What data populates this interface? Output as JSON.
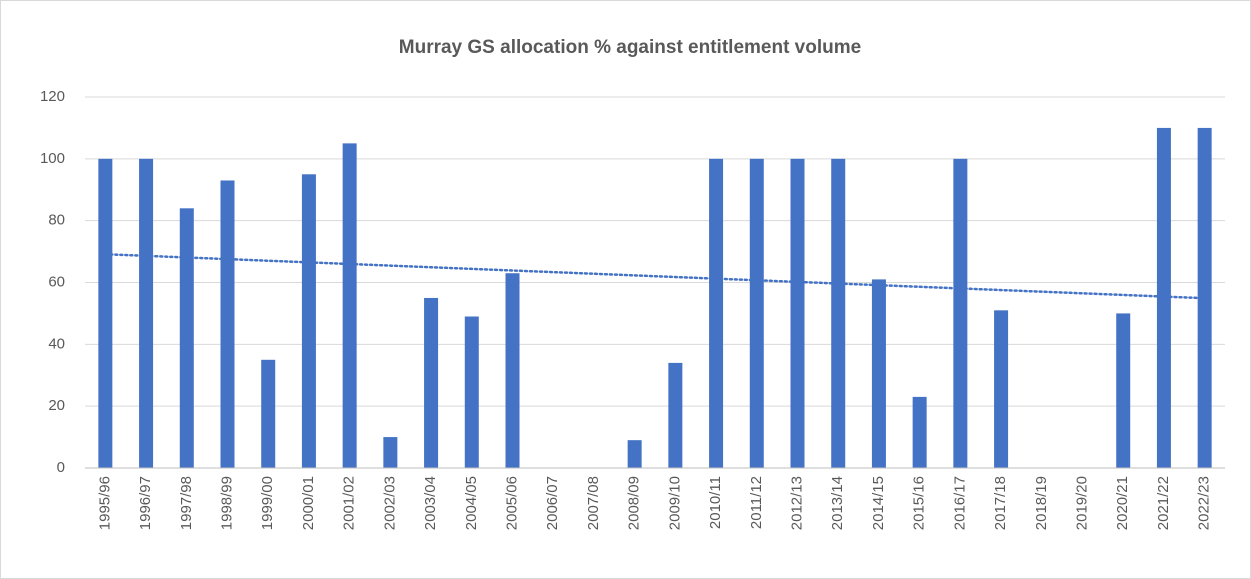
{
  "chart_data": {
    "type": "bar",
    "title": "Murray  GS allocation % against entitlement volume",
    "categories": [
      "1995/96",
      "1996/97",
      "1997/98",
      "1998/99",
      "1999/00",
      "2000/01",
      "2001/02",
      "2002/03",
      "2003/04",
      "2004/05",
      "2005/06",
      "2006/07",
      "2007/08",
      "2008/09",
      "2009/10",
      "2010/11",
      "2011/12",
      "2012/13",
      "2013/14",
      "2014/15",
      "2015/16",
      "2016/17",
      "2017/18",
      "2018/19",
      "2019/20",
      "2020/21",
      "2021/22",
      "2022/23"
    ],
    "values": [
      100,
      100,
      84,
      93,
      35,
      95,
      105,
      10,
      55,
      49,
      63,
      0,
      0,
      9,
      34,
      100,
      100,
      100,
      100,
      61,
      23,
      100,
      51,
      0,
      0,
      50,
      110,
      110
    ],
    "color": "#4472c4",
    "ylim": [
      0,
      120
    ],
    "yticks": [
      0,
      20,
      40,
      60,
      80,
      100,
      120
    ],
    "grid": true,
    "trendline": "linear"
  }
}
